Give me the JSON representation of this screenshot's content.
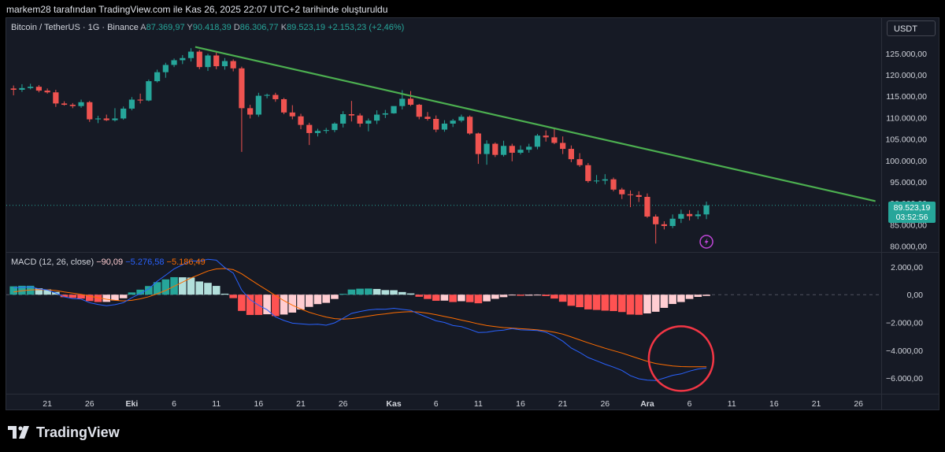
{
  "header": {
    "caption": "markem28 tarafından TradingView.com ile Kas 26, 2025 22:07 UTC+2 tarihinde oluşturuldu"
  },
  "symbol": {
    "title": "Bitcoin / TetherUS · 1G · Binance",
    "open_label": "A",
    "open": "87.369,97",
    "high_label": "Y",
    "high": "90.418,39",
    "low_label": "D",
    "low": "86.306,77",
    "close_label": "K",
    "close": "89.523,19",
    "change": "+2.153,23 (+2,46%)"
  },
  "currency_button": "USDT",
  "last_price": {
    "price": "89.523,19",
    "countdown": "03:52:56"
  },
  "macd_legend": {
    "title": "MACD (12, 26, close)",
    "histogram": "−90,09",
    "macd": "−5.276,58",
    "signal": "−5.186,49"
  },
  "brand": "TradingView",
  "colors": {
    "up": "#26a69a",
    "down": "#ef5350",
    "trendline": "#4caf50",
    "macd_line": "#2962ff",
    "signal_line": "#ff6d00",
    "hist_up_strong": "#26a69a",
    "hist_up_weak": "#b2dfdb",
    "hist_down_strong": "#ff5252",
    "hist_down_weak": "#ffcdd2",
    "annotation_circle": "#f23645"
  },
  "chart_data": [
    {
      "type": "candlestick",
      "title": "Bitcoin / TetherUS · 1G · Binance",
      "y_ticks": [
        "125.000,00",
        "120.000,00",
        "115.000,00",
        "110.000,00",
        "105.000,00",
        "100.000,00",
        "95.000,00",
        "90.000,00",
        "85.000,00",
        "80.000,00"
      ],
      "ylim": [
        79000,
        129000
      ],
      "x_tick_labels": [
        "21",
        "26",
        "Eki",
        "6",
        "11",
        "16",
        "21",
        "26",
        "Kas",
        "6",
        "11",
        "16",
        "21",
        "26",
        "Ara",
        "6",
        "11",
        "16",
        "21",
        "26"
      ],
      "x_tick_days": [
        -10,
        -5,
        0,
        5,
        10,
        15,
        20,
        25,
        31,
        36,
        41,
        46,
        51,
        56,
        61,
        66,
        71,
        76,
        81,
        86
      ],
      "candles": [
        {
          "d": -14,
          "o": 116800,
          "h": 117500,
          "l": 115200,
          "c": 116500
        },
        {
          "d": -13,
          "o": 116500,
          "h": 117800,
          "l": 116000,
          "c": 116900
        },
        {
          "d": -12,
          "o": 116900,
          "h": 117900,
          "l": 116600,
          "c": 117200
        },
        {
          "d": -11,
          "o": 117200,
          "h": 117600,
          "l": 115900,
          "c": 116300
        },
        {
          "d": -10,
          "o": 116300,
          "h": 116800,
          "l": 115600,
          "c": 115900
        },
        {
          "d": -9,
          "o": 115900,
          "h": 116500,
          "l": 112500,
          "c": 113300
        },
        {
          "d": -8,
          "o": 113300,
          "h": 113800,
          "l": 112800,
          "c": 113000
        },
        {
          "d": -7,
          "o": 113000,
          "h": 113400,
          "l": 112200,
          "c": 112700
        },
        {
          "d": -6,
          "o": 112700,
          "h": 114200,
          "l": 112300,
          "c": 113600
        },
        {
          "d": -5,
          "o": 113600,
          "h": 113900,
          "l": 109000,
          "c": 109600
        },
        {
          "d": -4,
          "o": 109600,
          "h": 110400,
          "l": 108700,
          "c": 109800
        },
        {
          "d": -3,
          "o": 109800,
          "h": 110700,
          "l": 109200,
          "c": 109400
        },
        {
          "d": -2,
          "o": 109400,
          "h": 112200,
          "l": 109100,
          "c": 109800
        },
        {
          "d": -1,
          "o": 109800,
          "h": 112600,
          "l": 109500,
          "c": 112100
        },
        {
          "d": 0,
          "o": 112100,
          "h": 114800,
          "l": 111700,
          "c": 114200
        },
        {
          "d": 1,
          "o": 114200,
          "h": 115600,
          "l": 113300,
          "c": 114000
        },
        {
          "d": 2,
          "o": 114000,
          "h": 118900,
          "l": 113800,
          "c": 118500
        },
        {
          "d": 3,
          "o": 118500,
          "h": 121200,
          "l": 118200,
          "c": 120600
        },
        {
          "d": 4,
          "o": 120600,
          "h": 122800,
          "l": 119300,
          "c": 122300
        },
        {
          "d": 5,
          "o": 122300,
          "h": 123800,
          "l": 121800,
          "c": 123400
        },
        {
          "d": 6,
          "o": 123400,
          "h": 124600,
          "l": 122500,
          "c": 123900
        },
        {
          "d": 7,
          "o": 123900,
          "h": 126200,
          "l": 123100,
          "c": 125400
        },
        {
          "d": 8,
          "o": 125400,
          "h": 125800,
          "l": 121300,
          "c": 121800
        },
        {
          "d": 9,
          "o": 121800,
          "h": 124900,
          "l": 120900,
          "c": 124500
        },
        {
          "d": 10,
          "o": 124500,
          "h": 125200,
          "l": 121300,
          "c": 122000
        },
        {
          "d": 11,
          "o": 122000,
          "h": 123900,
          "l": 121200,
          "c": 123200
        },
        {
          "d": 12,
          "o": 123200,
          "h": 123600,
          "l": 120800,
          "c": 121500
        },
        {
          "d": 13,
          "o": 121500,
          "h": 121900,
          "l": 102000,
          "c": 112200
        },
        {
          "d": 14,
          "o": 112200,
          "h": 113000,
          "l": 109800,
          "c": 110700
        },
        {
          "d": 15,
          "o": 110700,
          "h": 115800,
          "l": 110200,
          "c": 115100
        },
        {
          "d": 16,
          "o": 115100,
          "h": 115600,
          "l": 114500,
          "c": 115300
        },
        {
          "d": 17,
          "o": 115300,
          "h": 115800,
          "l": 113700,
          "c": 114300
        },
        {
          "d": 18,
          "o": 114300,
          "h": 114600,
          "l": 110800,
          "c": 111200
        },
        {
          "d": 19,
          "o": 111200,
          "h": 112900,
          "l": 109600,
          "c": 110300
        },
        {
          "d": 20,
          "o": 110300,
          "h": 110900,
          "l": 107300,
          "c": 108300
        },
        {
          "d": 21,
          "o": 108300,
          "h": 108800,
          "l": 103600,
          "c": 106400
        },
        {
          "d": 22,
          "o": 106400,
          "h": 107400,
          "l": 105600,
          "c": 106900
        },
        {
          "d": 23,
          "o": 106900,
          "h": 107600,
          "l": 106300,
          "c": 107100
        },
        {
          "d": 24,
          "o": 107100,
          "h": 108900,
          "l": 106600,
          "c": 108600
        },
        {
          "d": 25,
          "o": 108600,
          "h": 111500,
          "l": 107700,
          "c": 110800
        },
        {
          "d": 26,
          "o": 110800,
          "h": 113900,
          "l": 109100,
          "c": 110500
        },
        {
          "d": 27,
          "o": 110500,
          "h": 111000,
          "l": 107800,
          "c": 108600
        },
        {
          "d": 28,
          "o": 108600,
          "h": 109800,
          "l": 106800,
          "c": 109300
        },
        {
          "d": 29,
          "o": 109300,
          "h": 111700,
          "l": 108500,
          "c": 110700
        },
        {
          "d": 30,
          "o": 110700,
          "h": 111800,
          "l": 109900,
          "c": 111000
        },
        {
          "d": 31,
          "o": 111000,
          "h": 112500,
          "l": 110900,
          "c": 112700
        },
        {
          "d": 32,
          "o": 112700,
          "h": 116400,
          "l": 111900,
          "c": 114400
        },
        {
          "d": 33,
          "o": 114400,
          "h": 116200,
          "l": 112700,
          "c": 113000
        },
        {
          "d": 34,
          "o": 113000,
          "h": 113200,
          "l": 109600,
          "c": 110200
        },
        {
          "d": 35,
          "o": 110200,
          "h": 111300,
          "l": 109300,
          "c": 109700
        },
        {
          "d": 36,
          "o": 109700,
          "h": 110500,
          "l": 106600,
          "c": 107200
        },
        {
          "d": 37,
          "o": 107200,
          "h": 109400,
          "l": 106700,
          "c": 108600
        },
        {
          "d": 38,
          "o": 108600,
          "h": 109700,
          "l": 107800,
          "c": 109300
        },
        {
          "d": 39,
          "o": 109300,
          "h": 110700,
          "l": 108900,
          "c": 110200
        },
        {
          "d": 40,
          "o": 110200,
          "h": 110500,
          "l": 106000,
          "c": 106300
        },
        {
          "d": 41,
          "o": 106300,
          "h": 106500,
          "l": 99200,
          "c": 101500
        },
        {
          "d": 42,
          "o": 101500,
          "h": 104700,
          "l": 99000,
          "c": 103900
        },
        {
          "d": 43,
          "o": 103900,
          "h": 104200,
          "l": 100800,
          "c": 101300
        },
        {
          "d": 44,
          "o": 101300,
          "h": 104600,
          "l": 100900,
          "c": 103400
        },
        {
          "d": 45,
          "o": 103400,
          "h": 103900,
          "l": 99800,
          "c": 101800
        },
        {
          "d": 46,
          "o": 101800,
          "h": 103500,
          "l": 101400,
          "c": 102500
        },
        {
          "d": 47,
          "o": 102500,
          "h": 103900,
          "l": 101800,
          "c": 103200
        },
        {
          "d": 48,
          "o": 103200,
          "h": 106200,
          "l": 102600,
          "c": 105800
        },
        {
          "d": 49,
          "o": 105800,
          "h": 107000,
          "l": 104400,
          "c": 105400
        },
        {
          "d": 50,
          "o": 105400,
          "h": 107400,
          "l": 103800,
          "c": 104100
        },
        {
          "d": 51,
          "o": 104100,
          "h": 105600,
          "l": 101500,
          "c": 102700
        },
        {
          "d": 52,
          "o": 102700,
          "h": 103500,
          "l": 99600,
          "c": 100300
        },
        {
          "d": 53,
          "o": 100300,
          "h": 101700,
          "l": 98500,
          "c": 98900
        },
        {
          "d": 54,
          "o": 98900,
          "h": 99400,
          "l": 94800,
          "c": 95200
        },
        {
          "d": 55,
          "o": 95200,
          "h": 96600,
          "l": 94600,
          "c": 95300
        },
        {
          "d": 56,
          "o": 95300,
          "h": 96800,
          "l": 94400,
          "c": 95600
        },
        {
          "d": 57,
          "o": 95600,
          "h": 96000,
          "l": 92800,
          "c": 93200
        },
        {
          "d": 58,
          "o": 93200,
          "h": 93600,
          "l": 91000,
          "c": 92100
        },
        {
          "d": 59,
          "o": 92100,
          "h": 93000,
          "l": 89100,
          "c": 91900
        },
        {
          "d": 60,
          "o": 91900,
          "h": 92800,
          "l": 90300,
          "c": 91500
        },
        {
          "d": 61,
          "o": 91500,
          "h": 92300,
          "l": 86600,
          "c": 86900
        },
        {
          "d": 62,
          "o": 86900,
          "h": 87400,
          "l": 80600,
          "c": 85100
        },
        {
          "d": 63,
          "o": 85100,
          "h": 85800,
          "l": 83900,
          "c": 84700
        },
        {
          "d": 64,
          "o": 84700,
          "h": 87400,
          "l": 84200,
          "c": 86400
        },
        {
          "d": 65,
          "o": 86400,
          "h": 88500,
          "l": 85400,
          "c": 87500
        },
        {
          "d": 66,
          "o": 87500,
          "h": 88400,
          "l": 86000,
          "c": 87000
        },
        {
          "d": 67,
          "o": 87000,
          "h": 88300,
          "l": 86300,
          "c": 87400
        },
        {
          "d": 68,
          "o": 87400,
          "h": 90400,
          "l": 86300,
          "c": 89523
        }
      ],
      "trendline": [
        {
          "d": 7.5,
          "y": 126500
        },
        {
          "d": 88,
          "y": 90500
        }
      ],
      "last_price": 89523.19
    },
    {
      "type": "macd",
      "title": "MACD (12, 26, close)",
      "y_ticks": [
        "2.000,00",
        "0,00",
        "−2.000,00",
        "−4.000,00",
        "−6.000,00"
      ],
      "ylim": [
        -6900,
        2900
      ],
      "x_days": [
        -14,
        -13,
        -12,
        -11,
        -10,
        -9,
        -8,
        -7,
        -6,
        -5,
        -4,
        -3,
        -2,
        -1,
        0,
        1,
        2,
        3,
        4,
        5,
        6,
        7,
        8,
        9,
        10,
        11,
        12,
        13,
        14,
        15,
        16,
        17,
        18,
        19,
        20,
        21,
        22,
        23,
        24,
        25,
        26,
        27,
        28,
        29,
        30,
        31,
        32,
        33,
        34,
        35,
        36,
        37,
        38,
        39,
        40,
        41,
        42,
        43,
        44,
        45,
        46,
        47,
        48,
        49,
        50,
        51,
        52,
        53,
        54,
        55,
        56,
        57,
        58,
        59,
        60,
        61,
        62,
        63,
        64,
        65,
        66,
        67,
        68
      ],
      "macd": [
        500,
        520,
        560,
        420,
        340,
        120,
        -160,
        -280,
        -320,
        -580,
        -700,
        -800,
        -720,
        -580,
        -220,
        80,
        430,
        960,
        1400,
        1860,
        2150,
        2430,
        2400,
        2550,
        2480,
        1950,
        1550,
        330,
        -360,
        -760,
        -1080,
        -1600,
        -1860,
        -2050,
        -2100,
        -2150,
        -2130,
        -2200,
        -2030,
        -1700,
        -1350,
        -1210,
        -1100,
        -1040,
        -1050,
        -980,
        -1060,
        -1130,
        -1400,
        -1640,
        -1880,
        -2000,
        -2220,
        -2300,
        -2500,
        -2720,
        -2700,
        -2600,
        -2550,
        -2440,
        -2530,
        -2550,
        -2580,
        -2700,
        -2980,
        -3350,
        -3840,
        -4150,
        -4520,
        -4760,
        -5000,
        -5210,
        -5450,
        -5830,
        -6050,
        -6150,
        -6180,
        -6000,
        -5800,
        -5700,
        -5500,
        -5350,
        -5276.58
      ],
      "signal": [
        200,
        280,
        340,
        360,
        350,
        300,
        200,
        110,
        20,
        -100,
        -220,
        -330,
        -410,
        -450,
        -410,
        -300,
        -150,
        60,
        300,
        600,
        900,
        1200,
        1450,
        1700,
        1850,
        1880,
        1800,
        1500,
        1100,
        700,
        330,
        -60,
        -430,
        -760,
        -1030,
        -1270,
        -1450,
        -1610,
        -1720,
        -1760,
        -1720,
        -1640,
        -1540,
        -1450,
        -1380,
        -1300,
        -1250,
        -1220,
        -1250,
        -1330,
        -1440,
        -1570,
        -1690,
        -1830,
        -1960,
        -2100,
        -2220,
        -2300,
        -2370,
        -2400,
        -2450,
        -2480,
        -2530,
        -2600,
        -2700,
        -2840,
        -3040,
        -3250,
        -3460,
        -3660,
        -3850,
        -4030,
        -4200,
        -4400,
        -4600,
        -4800,
        -4950,
        -5050,
        -5130,
        -5170,
        -5186,
        -5190,
        -5186.49
      ],
      "histogram": [
        600,
        640,
        640,
        460,
        380,
        200,
        -180,
        -230,
        -280,
        -460,
        -530,
        -520,
        -420,
        -260,
        160,
        360,
        620,
        900,
        1100,
        1260,
        1250,
        1230,
        950,
        850,
        630,
        70,
        -250,
        -1170,
        -1460,
        -1460,
        -1410,
        -1540,
        -1430,
        -1290,
        -1070,
        -880,
        -680,
        -590,
        -310,
        60,
        370,
        430,
        440,
        410,
        330,
        320,
        190,
        90,
        -150,
        -310,
        -440,
        -430,
        -530,
        -470,
        -540,
        -620,
        -480,
        -300,
        -180,
        -40,
        -80,
        -70,
        -50,
        -100,
        -280,
        -510,
        -800,
        -900,
        -1060,
        -1100,
        -1150,
        -1180,
        -1250,
        -1430,
        -1450,
        -1350,
        -1230,
        -950,
        -670,
        -530,
        -310,
        -160,
        -90.09
      ],
      "annotation": {
        "shape": "circle",
        "center_day": 65,
        "center_value": -4600
      }
    }
  ]
}
